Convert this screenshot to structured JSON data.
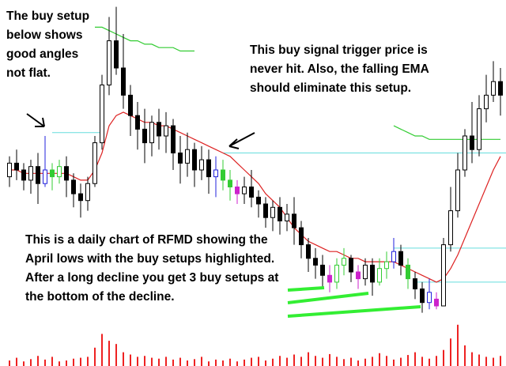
{
  "chart_data": {
    "type": "candlestick",
    "annotations": [
      "The buy setup below shows good angles not flat.",
      "This buy signal trigger price is never hit.  Also, the falling EMA should eliminate this setup.",
      "This is a daily chart of RFMD showing the April lows with the buy setups highlighted. After a long decline you get 3 buy setups at the bottom of the decline."
    ],
    "ylim": [
      0,
      100
    ],
    "open": [
      48,
      52,
      50,
      47,
      51,
      46,
      50,
      48,
      51,
      47,
      43,
      41,
      46,
      58,
      75,
      88,
      80,
      72,
      66,
      62,
      58,
      64,
      60,
      63,
      55,
      52,
      56,
      50,
      53,
      48,
      50,
      47,
      45,
      43,
      45,
      42,
      40,
      36,
      39,
      35,
      37,
      33,
      28,
      24,
      22,
      19,
      17,
      22,
      24,
      20,
      18,
      22,
      17,
      21,
      23,
      26,
      22,
      18,
      15,
      11,
      12,
      10,
      28,
      38,
      50,
      60,
      56,
      68,
      72,
      76
    ],
    "high": [
      54,
      56,
      52,
      53,
      55,
      60,
      52,
      53,
      54,
      49,
      46,
      48,
      60,
      78,
      95,
      98,
      90,
      75,
      70,
      68,
      66,
      68,
      67,
      65,
      60,
      61,
      58,
      57,
      56,
      54,
      53,
      50,
      47,
      48,
      50,
      44,
      42,
      41,
      42,
      40,
      42,
      35,
      30,
      27,
      25,
      22,
      24,
      27,
      25,
      22,
      24,
      24,
      24,
      26,
      30,
      28,
      24,
      20,
      17,
      18,
      14,
      30,
      45,
      55,
      62,
      70,
      72,
      78,
      82,
      80
    ],
    "low": [
      45,
      47,
      44,
      43,
      40,
      45,
      44,
      46,
      42,
      39,
      36,
      38,
      45,
      56,
      72,
      78,
      68,
      60,
      56,
      52,
      54,
      56,
      55,
      50,
      46,
      48,
      45,
      47,
      43,
      42,
      44,
      41,
      40,
      40,
      39,
      36,
      33,
      32,
      31,
      32,
      28,
      24,
      20,
      18,
      15,
      14,
      15,
      19,
      17,
      15,
      16,
      13,
      16,
      18,
      21,
      19,
      15,
      12,
      8,
      9,
      9,
      10,
      26,
      36,
      48,
      52,
      54,
      64,
      70,
      66
    ],
    "close": [
      52,
      50,
      47,
      51,
      46,
      50,
      48,
      51,
      47,
      43,
      41,
      46,
      58,
      75,
      88,
      80,
      72,
      66,
      62,
      58,
      64,
      60,
      63,
      55,
      52,
      56,
      50,
      53,
      48,
      50,
      47,
      45,
      43,
      45,
      42,
      40,
      36,
      39,
      35,
      37,
      33,
      28,
      24,
      22,
      19,
      17,
      22,
      24,
      20,
      18,
      22,
      17,
      21,
      23,
      26,
      22,
      18,
      15,
      11,
      14,
      10,
      28,
      38,
      50,
      60,
      56,
      68,
      72,
      76,
      72
    ],
    "colors": [
      "#000",
      "#000",
      "#000",
      "#000",
      "#000",
      "#2222dd",
      "#33cc33",
      "#33cc33",
      "#000",
      "#000",
      "#000",
      "#000",
      "#000",
      "#000",
      "#000",
      "#000",
      "#000",
      "#000",
      "#000",
      "#000",
      "#000",
      "#000",
      "#000",
      "#000",
      "#000",
      "#000",
      "#000",
      "#000",
      "#000",
      "#2222dd",
      "#33cc33",
      "#33cc33",
      "#cc22cc",
      "#000",
      "#000",
      "#000",
      "#000",
      "#000",
      "#000",
      "#000",
      "#000",
      "#000",
      "#000",
      "#000",
      "#000",
      "#cc22cc",
      "#33cc33",
      "#33cc33",
      "#000",
      "#cc22cc",
      "#000",
      "#000",
      "#33cc33",
      "#33cc33",
      "#2222dd",
      "#000",
      "#33cc33",
      "#000",
      "#000",
      "#2222dd",
      "#cc22cc",
      "#000",
      "#000",
      "#000",
      "#000",
      "#000",
      "#000",
      "#000",
      "#000",
      "#000"
    ],
    "ema": [
      50,
      50,
      49,
      49,
      49,
      49,
      49,
      49,
      49,
      48,
      47,
      47,
      50,
      55,
      63,
      66,
      67,
      66,
      65,
      64,
      64,
      63,
      63,
      62,
      61,
      60,
      59,
      58,
      57,
      56,
      55,
      54,
      52,
      50,
      48,
      46,
      43,
      41,
      39,
      36,
      33,
      31,
      29,
      28,
      27,
      26,
      26,
      25,
      24,
      24,
      23,
      23,
      23,
      23,
      23,
      22,
      21,
      20,
      19,
      18,
      17,
      18,
      21,
      25,
      30,
      35,
      40,
      45,
      50,
      54
    ],
    "ema_color": "#dd2222",
    "ema_long": [
      null,
      null,
      null,
      null,
      null,
      null,
      null,
      null,
      null,
      null,
      null,
      null,
      92,
      92,
      91,
      90,
      89,
      88,
      88,
      87,
      87,
      86,
      86,
      86,
      85,
      85,
      85,
      null,
      null,
      null,
      null,
      null,
      null,
      null,
      null,
      null,
      null,
      null,
      null,
      null,
      null,
      null,
      null,
      null,
      null,
      null,
      null,
      null,
      null,
      null,
      null,
      null,
      null,
      null,
      63,
      62,
      61,
      60,
      60,
      59,
      59,
      59,
      59,
      59,
      59,
      59,
      59,
      59,
      59,
      59
    ],
    "ema_long_color": "#33cc33",
    "trigger_lines": [
      {
        "value": 61,
        "from": 6,
        "to": 13
      },
      {
        "value": 55,
        "from": 30,
        "to": 69
      },
      {
        "value": 27,
        "from": 54,
        "to": 69
      },
      {
        "value": 17,
        "from": 57,
        "to": 69
      }
    ],
    "trigger_color": "#66dddd",
    "volume": [
      12,
      18,
      10,
      15,
      22,
      14,
      20,
      10,
      12,
      16,
      18,
      20,
      40,
      70,
      55,
      48,
      30,
      25,
      20,
      22,
      18,
      16,
      20,
      14,
      18,
      12,
      15,
      20,
      10,
      14,
      12,
      16,
      10,
      14,
      18,
      20,
      12,
      16,
      22,
      18,
      25,
      20,
      30,
      22,
      18,
      26,
      20,
      15,
      18,
      12,
      16,
      20,
      28,
      22,
      14,
      18,
      24,
      30,
      20,
      16,
      22,
      35,
      60,
      90,
      45,
      30,
      25,
      20,
      18,
      22
    ],
    "volume_lim": [
      0,
      100
    ],
    "volume_color": "#ee2222"
  }
}
